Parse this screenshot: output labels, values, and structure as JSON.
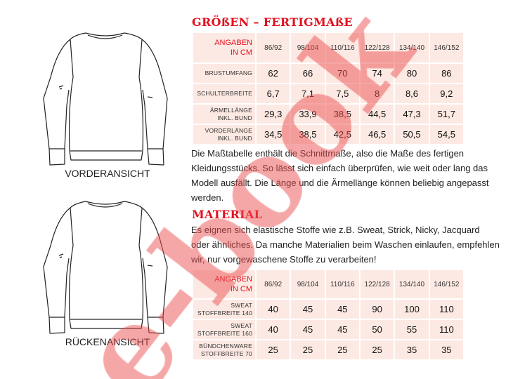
{
  "sizes_title": "GRÖßEN – FERTIGMAßE",
  "sizes_table": {
    "header_label": [
      "ANGABEN",
      "IN CM"
    ],
    "columns": [
      "86/92",
      "98/104",
      "110/116",
      "122/128",
      "134/140",
      "146/152"
    ],
    "rows": [
      {
        "label": [
          "BRUSTUMFANG"
        ],
        "values": [
          "62",
          "66",
          "70",
          "74",
          "80",
          "86"
        ]
      },
      {
        "label": [
          "SCHULTERBREITE"
        ],
        "values": [
          "6,7",
          "7,1",
          "7,5",
          "8",
          "8,6",
          "9,2"
        ]
      },
      {
        "label": [
          "ÄRMELLÄNGE",
          "INKL. BUND"
        ],
        "values": [
          "29,3",
          "33,9",
          "38,5",
          "44,5",
          "47,3",
          "51,7"
        ]
      },
      {
        "label": [
          "VORDERLÄNGE",
          "INKL. BUND"
        ],
        "values": [
          "34,5",
          "38,5",
          "42,5",
          "46,5",
          "50,5",
          "54,5"
        ]
      }
    ]
  },
  "sizes_text": "Die Maßtabelle enthält die Schnittmaße, also die Maße des fertigen Kleidungsstücks. So lässt sich einfach überprüfen, wie weit oder lang das Modell ausfällt. Die Länge und die Ärmellänge können beliebig angepasst werden.",
  "material_title": "MATERIAL",
  "material_text": "Es eignen sich elastische Stoffe wie z.B.  Sweat, Strick, Nicky, Jacquard oder ähnliches. Da manche Materialien beim Waschen einlaufen, empfehlen wir, nur vorgewaschene Stoffe zu verarbeiten!",
  "material_table": {
    "header_label": [
      "ANGABEN",
      "IN CM"
    ],
    "columns": [
      "86/92",
      "98/104",
      "110/116",
      "122/128",
      "134/140",
      "146/152"
    ],
    "rows": [
      {
        "label": [
          "SWEAT",
          "STOFFBREITE 140"
        ],
        "values": [
          "40",
          "45",
          "45",
          "90",
          "100",
          "110"
        ]
      },
      {
        "label": [
          "SWEAT",
          "STOFFBREITE 160"
        ],
        "values": [
          "40",
          "45",
          "45",
          "50",
          "55",
          "110"
        ]
      },
      {
        "label": [
          "BÜNDCHENWARE",
          "STOFFBREITE 70"
        ],
        "values": [
          "25",
          "25",
          "25",
          "25",
          "35",
          "35"
        ]
      }
    ]
  },
  "front_caption": "VORDERANSICHT",
  "back_caption": "RÜCKENANSICHT",
  "watermark": "e-book",
  "accent_color": "#e3101f"
}
